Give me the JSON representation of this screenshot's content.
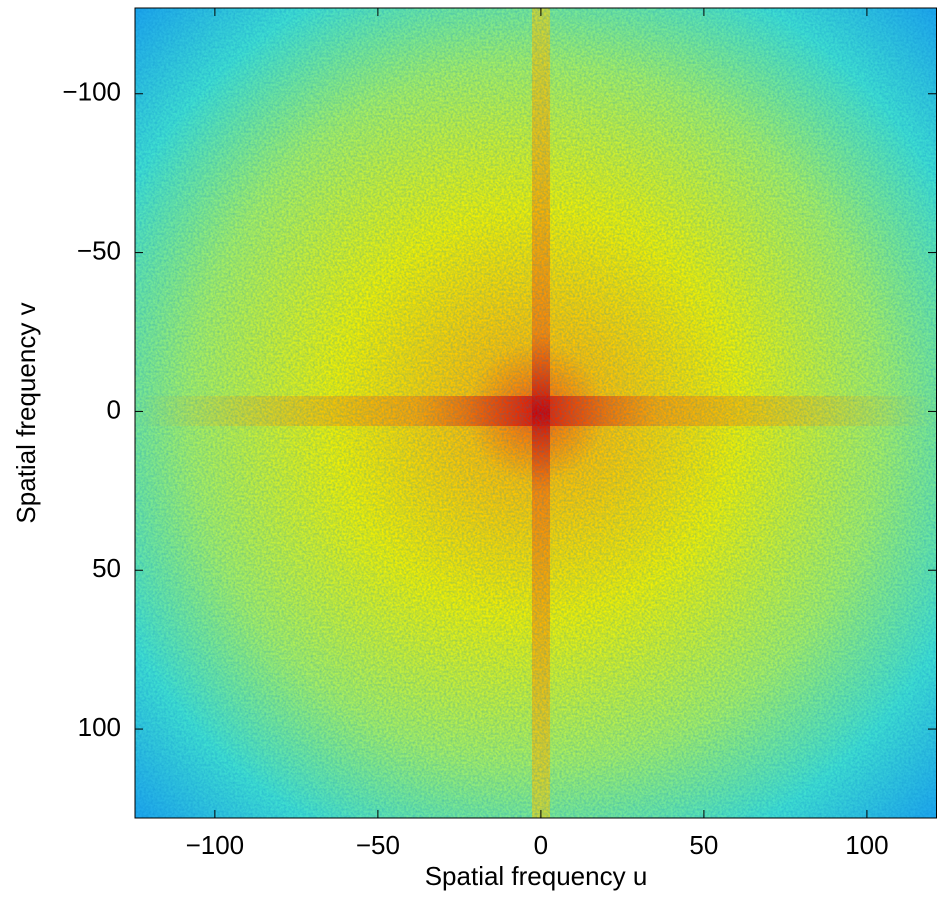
{
  "chart_data": {
    "type": "heatmap",
    "xlabel": "Spatial frequency u",
    "ylabel": "Spatial frequency v",
    "xlim": [
      -124.5,
      121.5
    ],
    "ylim": [
      -127,
      128
    ],
    "y_reversed": true,
    "xticks": [
      {
        "value": -100,
        "label": "−100"
      },
      {
        "value": -50,
        "label": "−50"
      },
      0,
      50,
      100
    ],
    "yticks": [
      {
        "value": -100,
        "label": "−100"
      },
      {
        "value": -50,
        "label": "−50"
      },
      0,
      50,
      100
    ],
    "colormap": "jet"
  }
}
